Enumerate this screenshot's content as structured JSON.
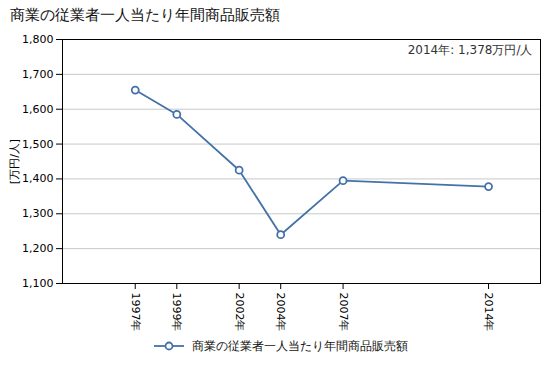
{
  "chart_data": {
    "type": "line",
    "title": "商業の従業者一人当たり年間商品販売額",
    "ylabel": "[万円/人]",
    "annotation": "2014年: 1,378万円/人",
    "x": [
      1997,
      1999,
      2002,
      2004,
      2007,
      2014
    ],
    "series": [
      {
        "name": "商業の従業者一人当たり年間商品販売額",
        "color": "#4472a8",
        "marker": "circle",
        "values": [
          1655,
          1585,
          1425,
          1240,
          1395,
          1378
        ]
      }
    ],
    "xlim": [
      1993.5,
      2016.5
    ],
    "xticks": [
      {
        "value": 1997,
        "label": "1997年"
      },
      {
        "value": 1999,
        "label": "1999年"
      },
      {
        "value": 2002,
        "label": "2002年"
      },
      {
        "value": 2004,
        "label": "2004年"
      },
      {
        "value": 2007,
        "label": "2007年"
      },
      {
        "value": 2014,
        "label": "2014年"
      }
    ],
    "ylim": [
      1100,
      1800
    ],
    "yticks": [
      {
        "value": 1100,
        "label": "1,100"
      },
      {
        "value": 1200,
        "label": "1,200"
      },
      {
        "value": 1300,
        "label": "1,300"
      },
      {
        "value": 1400,
        "label": "1,400"
      },
      {
        "value": 1500,
        "label": "1,500"
      },
      {
        "value": 1600,
        "label": "1,600"
      },
      {
        "value": 1700,
        "label": "1,700"
      },
      {
        "value": 1800,
        "label": "1,800"
      }
    ],
    "grid": "y",
    "legend": "bottom"
  }
}
